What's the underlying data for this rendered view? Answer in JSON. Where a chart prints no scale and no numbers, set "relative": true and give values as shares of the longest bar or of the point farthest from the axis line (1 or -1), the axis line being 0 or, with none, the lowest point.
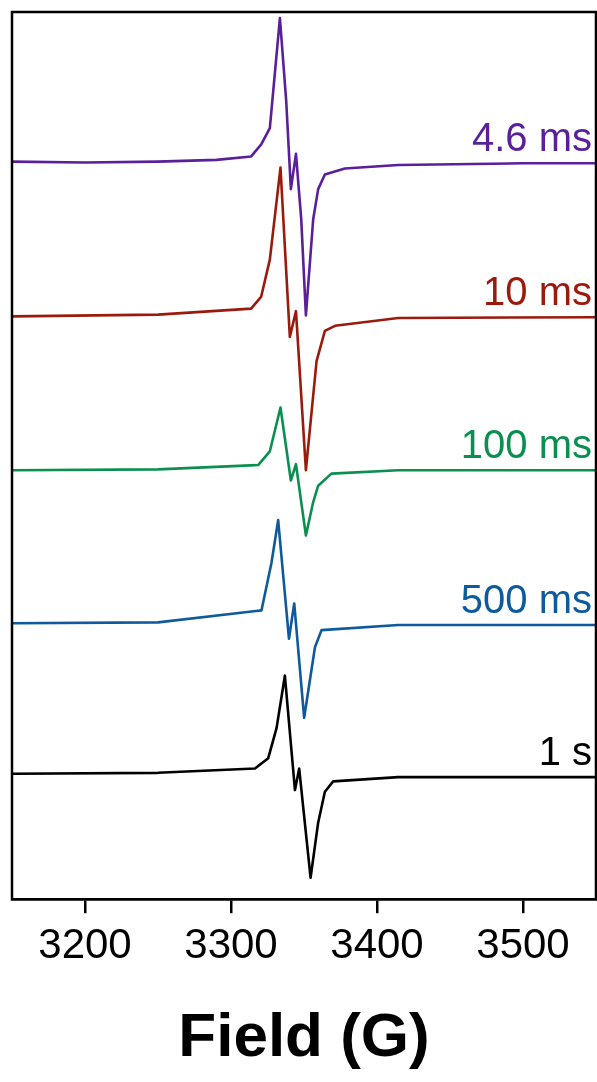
{
  "chart_data": {
    "type": "line",
    "xlabel": "Field (G)",
    "relative": true,
    "xlim": [
      3150,
      3550
    ],
    "xticks": [
      3200,
      3300,
      3400,
      3500
    ],
    "grid": false,
    "legend": false,
    "marker": "none",
    "line_style": "solid",
    "series": [
      {
        "name": "4.6 ms",
        "color": "#5a1f9a",
        "x": [
          3150,
          3200,
          3250,
          3290,
          3313.8,
          3320.7,
          3326.6,
          3333.5,
          3337.8,
          3341,
          3344.5,
          3348.1,
          3351.3,
          3356.3,
          3359.7,
          3364.3,
          3378,
          3414.5,
          3500,
          3550
        ],
        "values": [
          0.833,
          0.832,
          0.833,
          0.835,
          0.839,
          0.853,
          0.872,
          1.0,
          0.904,
          0.801,
          0.842,
          0.766,
          0.654,
          0.766,
          0.801,
          0.818,
          0.825,
          0.829,
          0.831,
          0.831
        ]
      },
      {
        "name": "10 ms",
        "color": "#9a1a0c",
        "x": [
          3150,
          3250,
          3313.8,
          3320.7,
          3326.6,
          3333.9,
          3340.3,
          3344.5,
          3351.3,
          3358.6,
          3364.3,
          3371.2,
          3414.5,
          3550
        ],
        "values": [
          0.653,
          0.655,
          0.662,
          0.676,
          0.719,
          0.826,
          0.629,
          0.659,
          0.474,
          0.601,
          0.636,
          0.642,
          0.651,
          0.652
        ]
      },
      {
        "name": "100 ms",
        "color": "#0b8f50",
        "x": [
          3150,
          3250,
          3318.6,
          3326.6,
          3333.9,
          3341,
          3344.5,
          3351.3,
          3356.3,
          3359.7,
          3368.8,
          3414.5,
          3550
        ],
        "values": [
          0.474,
          0.475,
          0.48,
          0.496,
          0.547,
          0.462,
          0.481,
          0.398,
          0.437,
          0.456,
          0.47,
          0.474,
          0.474
        ]
      },
      {
        "name": "500 ms",
        "color": "#0d5a9c",
        "x": [
          3150,
          3250,
          3320.9,
          3327.7,
          3332.3,
          3339.7,
          3343.3,
          3350.1,
          3357.5,
          3362,
          3414.5,
          3550
        ],
        "values": [
          0.296,
          0.297,
          0.311,
          0.366,
          0.416,
          0.278,
          0.319,
          0.186,
          0.268,
          0.288,
          0.294,
          0.294
        ]
      },
      {
        "name": "1 s",
        "color": "#000000",
        "x": [
          3150,
          3250,
          3316.4,
          3325.5,
          3331.2,
          3336.9,
          3343.8,
          3346.7,
          3354.5,
          3359.7,
          3364.3,
          3370,
          3414.5,
          3550
        ],
        "values": [
          0.121,
          0.122,
          0.127,
          0.139,
          0.174,
          0.235,
          0.102,
          0.127,
          0.0,
          0.064,
          0.1,
          0.112,
          0.117,
          0.117
        ]
      }
    ]
  }
}
